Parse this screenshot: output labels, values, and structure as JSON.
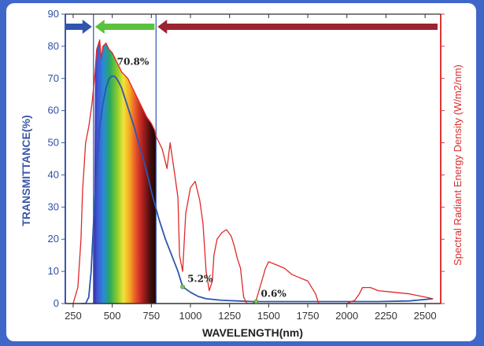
{
  "chart_data": {
    "type": "line",
    "xlabel": "WAVELENGTH(nm)",
    "ylabel": "TRANSMITTANCE(%)",
    "y2label": "Spectral Radiant Energy Density (W/m2/nm)",
    "xlim": [
      200,
      2600
    ],
    "ylim": [
      0,
      90
    ],
    "x_ticks": [
      250,
      500,
      750,
      1000,
      1250,
      1500,
      1750,
      2000,
      2250,
      2500
    ],
    "y_ticks": [
      0,
      10,
      20,
      30,
      40,
      50,
      60,
      70,
      80,
      90
    ],
    "grid": false,
    "colors": {
      "transmittance": "#2f55b0",
      "solar": "#e02828",
      "axis_left": "#3b57a8",
      "axis_right": "#e03535",
      "arrow_uv": "#2f55b0",
      "arrow_visible": "#5ac23e",
      "arrow_ir": "#9c2230",
      "background": "#3f67c9"
    },
    "region_boundaries": [
      380,
      780
    ],
    "region_arrows": [
      {
        "from": 200,
        "to": 370,
        "direction": "right"
      },
      {
        "from": 390,
        "to": 770,
        "direction": "left"
      },
      {
        "from": 790,
        "to": 2580,
        "direction": "left"
      }
    ],
    "visible_gradient": {
      "from": 380,
      "to": 780
    },
    "series": [
      {
        "key": "transmittance",
        "axis": "left",
        "x": [
          300,
          330,
          350,
          365,
          380,
          400,
          420,
          440,
          460,
          480,
          500,
          520,
          540,
          560,
          580,
          600,
          640,
          680,
          720,
          760,
          800,
          840,
          880,
          920,
          950,
          1000,
          1050,
          1100,
          1200,
          1300,
          1400,
          1420,
          1500,
          1600,
          1800,
          2000,
          2200,
          2400,
          2550
        ],
        "y": [
          0,
          0,
          2,
          10,
          25,
          42,
          55,
          62,
          67,
          70,
          70.8,
          70.5,
          69,
          67,
          64,
          61,
          55,
          48,
          41,
          33,
          26,
          20,
          15,
          10,
          5.2,
          3.5,
          2.2,
          1.5,
          1.0,
          0.8,
          0.6,
          0.6,
          0.6,
          0.6,
          0.6,
          0.6,
          0.6,
          0.8,
          1.5
        ]
      },
      {
        "key": "solar",
        "axis": "right",
        "x": [
          250,
          280,
          300,
          310,
          330,
          350,
          370,
          390,
          400,
          420,
          430,
          440,
          460,
          480,
          500,
          520,
          540,
          560,
          600,
          640,
          680,
          720,
          750,
          770,
          780,
          800,
          820,
          850,
          870,
          900,
          920,
          930,
          950,
          970,
          1000,
          1030,
          1060,
          1080,
          1100,
          1120,
          1140,
          1150,
          1170,
          1200,
          1230,
          1260,
          1280,
          1300,
          1320,
          1340,
          1360,
          1380,
          1400,
          1420,
          1450,
          1480,
          1500,
          1550,
          1600,
          1650,
          1700,
          1750,
          1800,
          1820,
          1850,
          1900,
          1950,
          2000,
          2050,
          2080,
          2100,
          2150,
          2200,
          2300,
          2400,
          2500,
          2550
        ],
        "y": [
          0,
          5,
          20,
          35,
          50,
          55,
          62,
          72,
          79,
          82,
          76,
          80,
          81,
          79,
          78,
          76,
          74,
          72,
          70,
          66,
          62,
          58,
          56,
          54,
          52,
          50,
          48,
          42,
          50,
          40,
          33,
          15,
          10,
          28,
          36,
          38,
          32,
          25,
          10,
          4,
          7,
          15,
          20,
          22,
          23,
          21,
          18,
          14,
          11,
          2,
          0,
          0,
          0,
          1,
          6,
          11,
          13,
          12,
          11,
          9,
          8,
          7,
          3,
          0,
          0,
          0,
          0,
          0,
          1,
          3,
          5,
          5,
          4,
          3.5,
          3,
          2,
          1.5
        ]
      }
    ],
    "annotations": [
      {
        "text": "70.8%",
        "x": 500,
        "y": 70.8
      },
      {
        "text": "5.2%",
        "x": 950,
        "y": 5.2
      },
      {
        "text": "0.6%",
        "x": 1420,
        "y": 0.6
      }
    ]
  }
}
